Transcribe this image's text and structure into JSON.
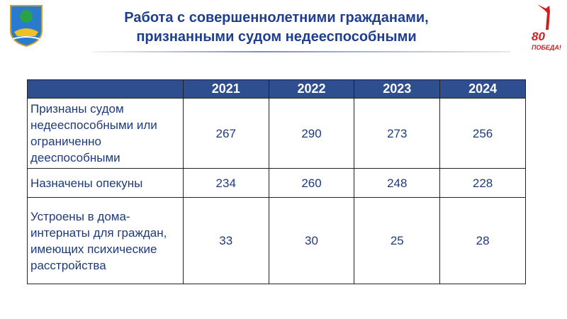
{
  "header": {
    "title_lines": [
      "Работа с совершеннолетними гражданами,",
      "признанными судом недееспособными"
    ]
  },
  "emblem": {
    "number": "80",
    "text": "ПОБЕДА!"
  },
  "table": {
    "columns": [
      "2021",
      "2022",
      "2023",
      "2024"
    ],
    "rows": [
      {
        "label": "Признаны судом недееспособными или ограниченно дееспособными",
        "values": [
          267,
          290,
          273,
          256
        ]
      },
      {
        "label": "Назначены опекуны",
        "values": [
          234,
          260,
          248,
          228
        ]
      },
      {
        "label": "Устроены в дома-интернаты для граждан, имеющих психические расстройства",
        "values": [
          33,
          30,
          25,
          28
        ]
      }
    ]
  }
}
